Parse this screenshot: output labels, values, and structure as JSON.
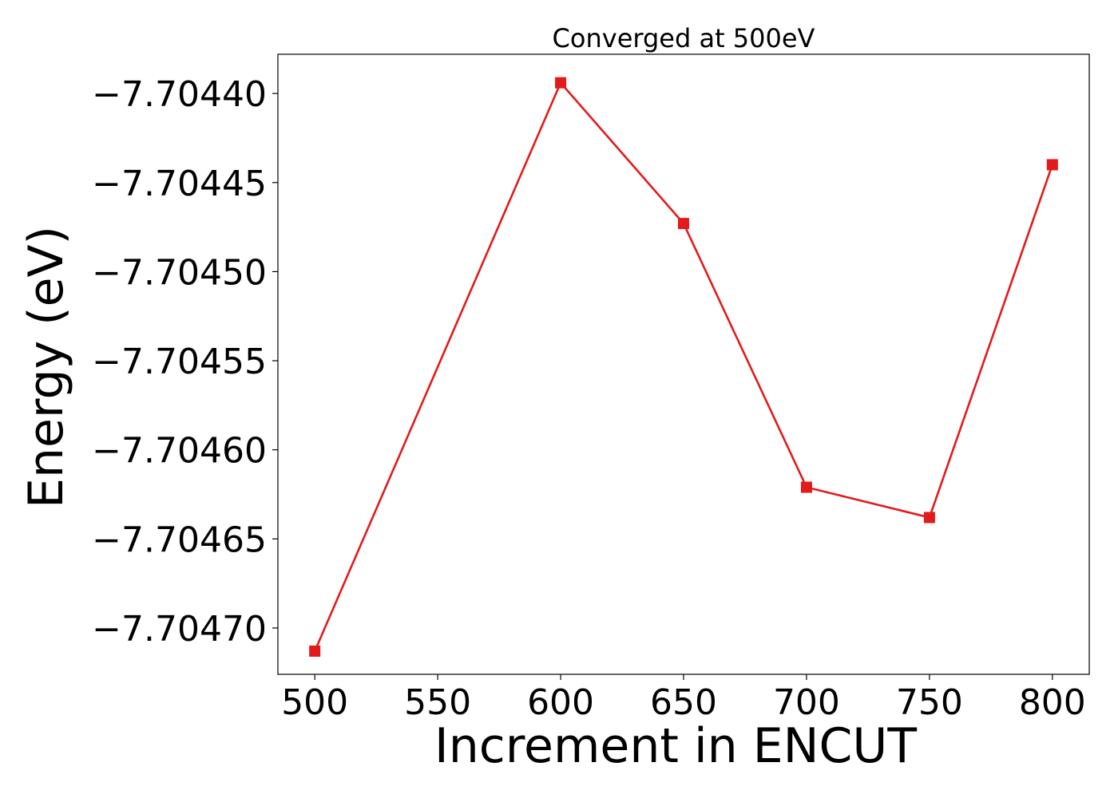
{
  "chart_data": {
    "type": "line",
    "title": "Converged at 500eV",
    "xlabel": "Increment in ENCUT",
    "ylabel": "Energy (eV)",
    "x": [
      500,
      600,
      650,
      700,
      750,
      800
    ],
    "series": [
      {
        "values": [
          -7.704713,
          -7.704394,
          -7.704473,
          -7.704621,
          -7.704638,
          -7.70444
        ],
        "color": "#e31a1c",
        "marker": "square"
      }
    ],
    "xlim": [
      485,
      815
    ],
    "ylim": [
      -7.704726,
      -7.704378
    ],
    "xticks": [
      500,
      550,
      600,
      650,
      700,
      750,
      800
    ],
    "xtick_labels": [
      "500",
      "550",
      "600",
      "650",
      "700",
      "750",
      "800"
    ],
    "yticks": [
      -7.7044,
      -7.70445,
      -7.7045,
      -7.70455,
      -7.7046,
      -7.70465,
      -7.7047
    ],
    "ytick_labels": [
      "−7.70440",
      "−7.70445",
      "−7.70450",
      "−7.70455",
      "−7.70460",
      "−7.70465",
      "−7.70470"
    ],
    "grid": false,
    "legend": "none"
  }
}
